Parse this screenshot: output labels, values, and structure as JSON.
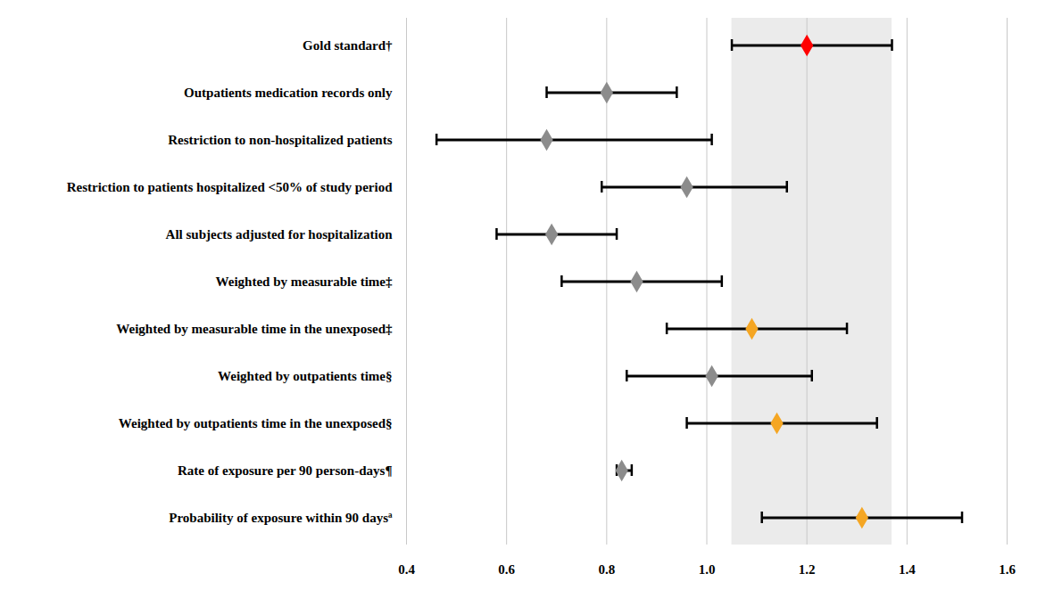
{
  "chart_data": {
    "type": "forest",
    "orientation": "horizontal",
    "categories": [
      "Gold standard†",
      "Outpatients medication records only",
      "Restriction to non-hospitalized patients",
      "Restriction to patients hospitalized <50% of study period",
      "All subjects adjusted for hospitalization",
      "Weighted by measurable time‡",
      "Weighted by measurable time in the unexposed‡",
      "Weighted by outpatients time§",
      "Weighted by outpatients time in the unexposed§",
      "Rate of exposure per 90 person-days¶",
      "Probability of exposure within 90 daysª"
    ],
    "values": [
      1.2,
      0.8,
      0.68,
      0.96,
      0.69,
      0.86,
      1.09,
      1.01,
      1.14,
      0.83,
      1.31
    ],
    "lower": [
      1.05,
      0.68,
      0.46,
      0.79,
      0.58,
      0.71,
      0.92,
      0.84,
      0.96,
      0.82,
      1.11
    ],
    "upper": [
      1.37,
      0.94,
      1.01,
      1.16,
      0.82,
      1.03,
      1.28,
      1.21,
      1.34,
      0.85,
      1.51
    ],
    "colors": [
      "#ff0000",
      "#8c8c8c",
      "#8c8c8c",
      "#8c8c8c",
      "#8c8c8c",
      "#8c8c8c",
      "#f5a623",
      "#8c8c8c",
      "#f5a623",
      "#8c8c8c",
      "#f5a623"
    ],
    "marker": "diamond",
    "xlim": [
      0.4,
      1.6
    ],
    "xticks": [
      0.4,
      0.6,
      0.8,
      {
        "value": 1,
        "label": "1.0"
      },
      1.2,
      1.4,
      1.6
    ],
    "grid": true
  }
}
